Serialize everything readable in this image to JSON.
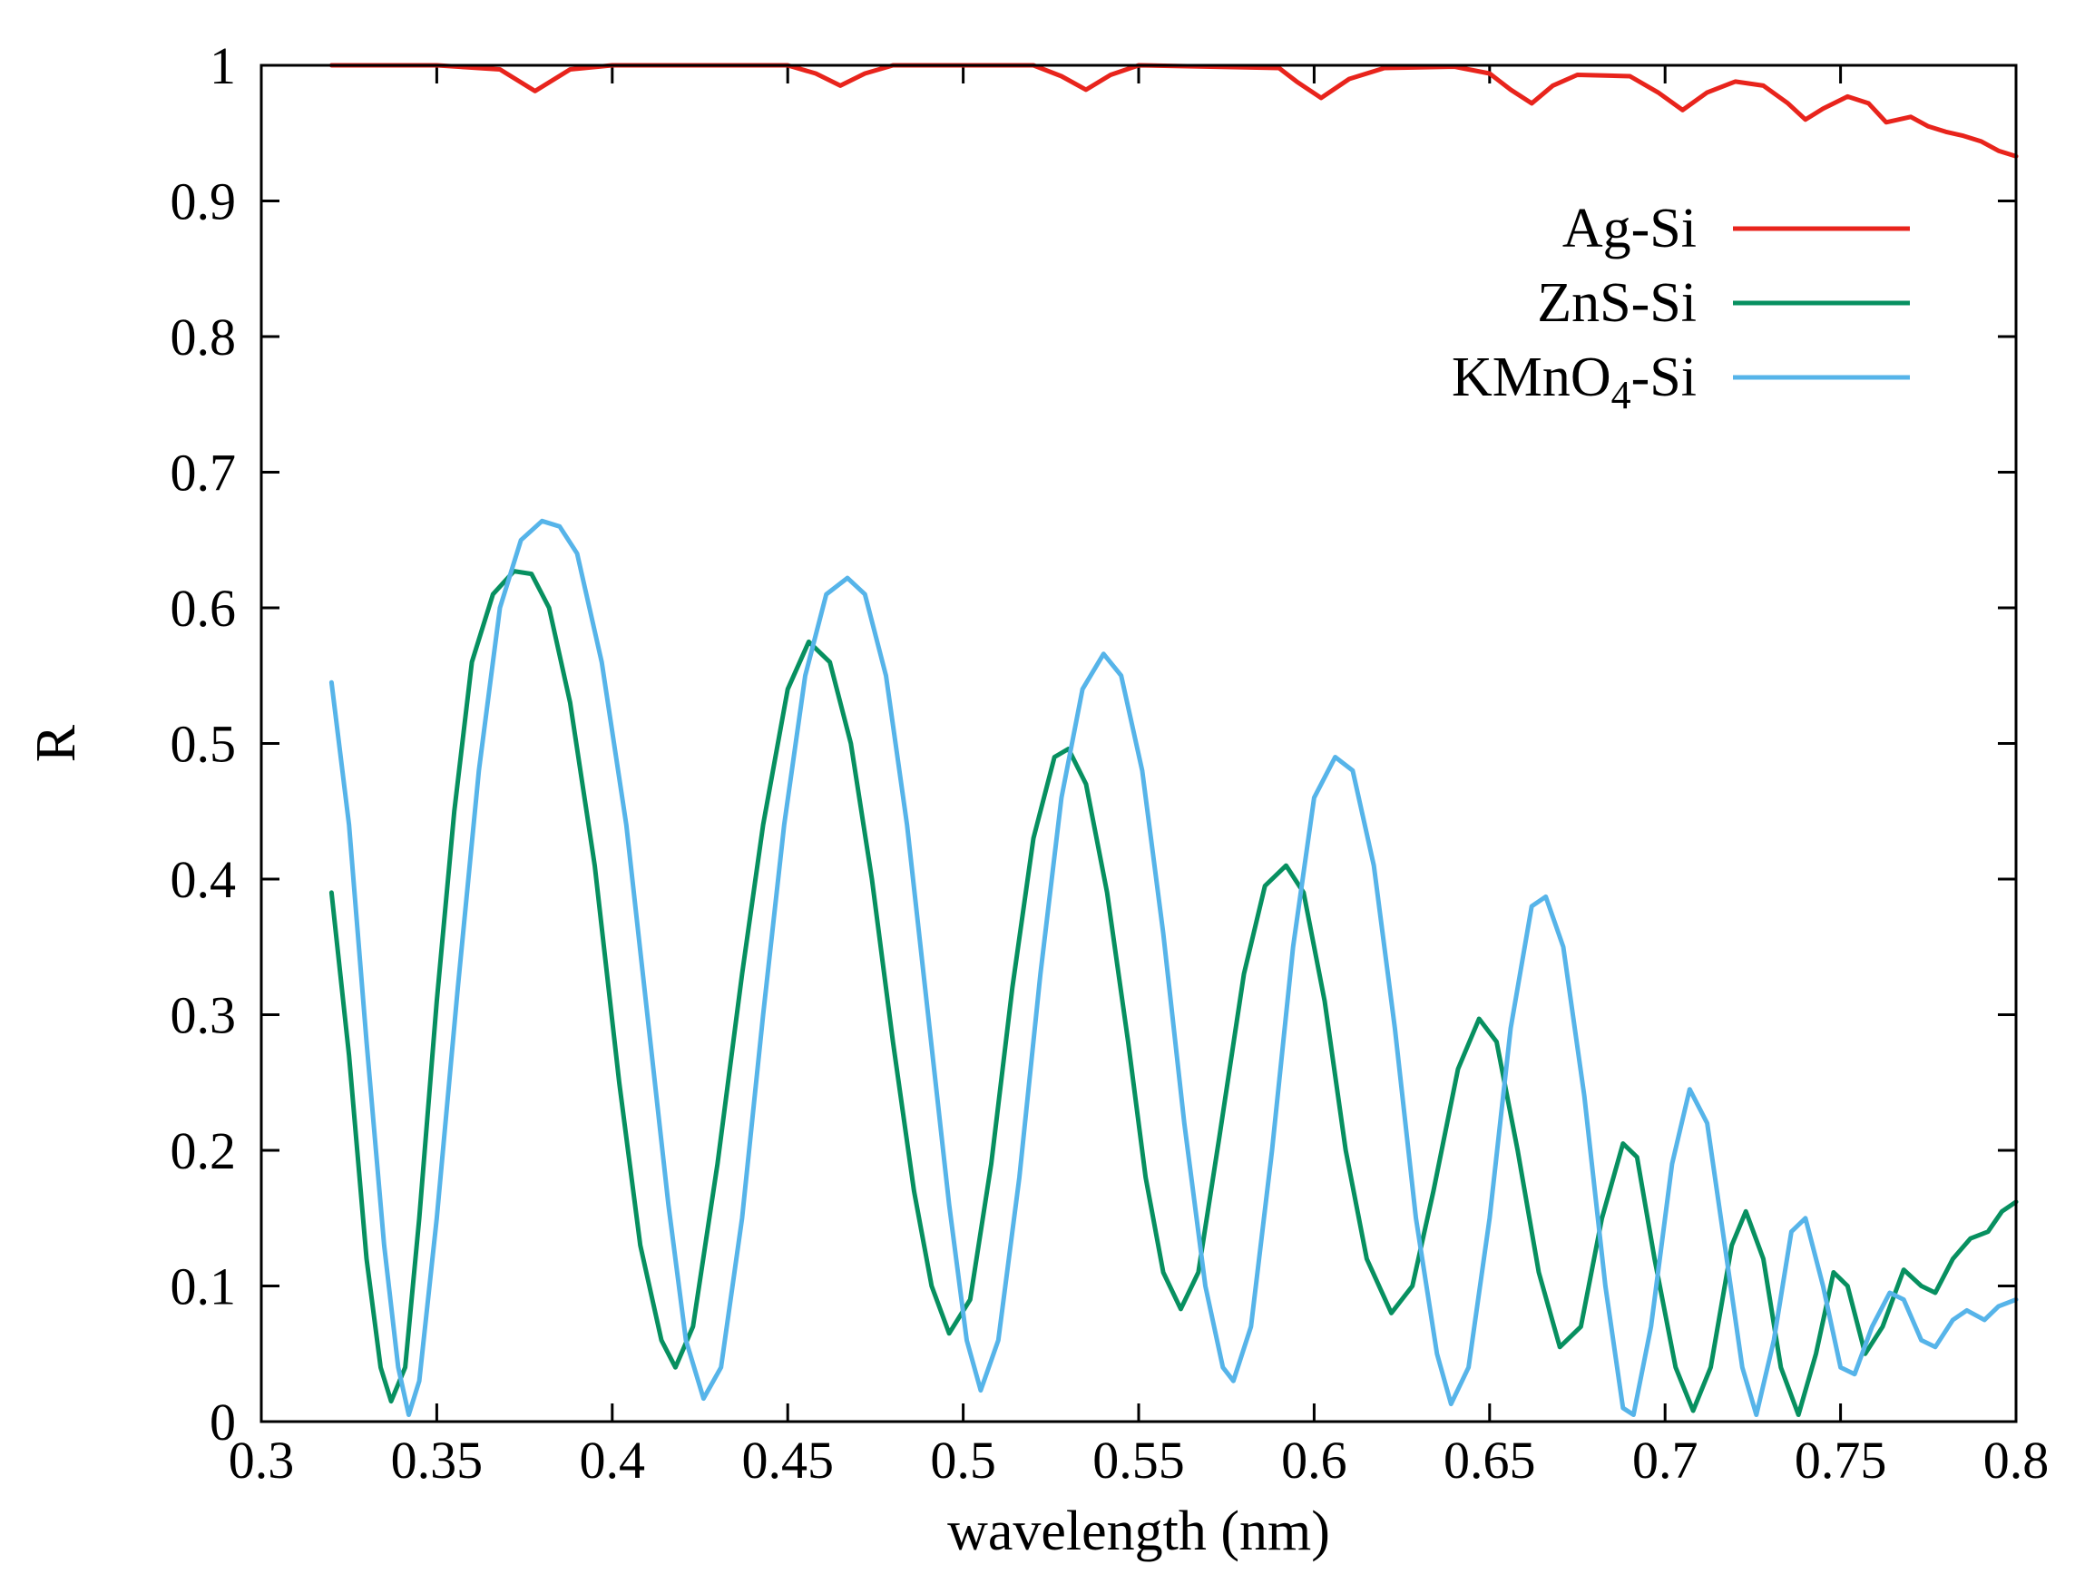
{
  "chart_data": {
    "type": "line",
    "xlabel": "wavelength (nm)",
    "ylabel": "R",
    "xlim": [
      0.3,
      0.8
    ],
    "ylim": [
      0,
      1
    ],
    "x_ticks": [
      "0.3",
      "0.35",
      "0.4",
      "0.45",
      "0.5",
      "0.55",
      "0.6",
      "0.65",
      "0.7",
      "0.75",
      "0.8"
    ],
    "y_ticks": [
      "0",
      "0.1",
      "0.2",
      "0.3",
      "0.4",
      "0.5",
      "0.6",
      "0.7",
      "0.8",
      "0.9",
      "1"
    ],
    "grid": false,
    "legend_position": "top-right",
    "series": [
      {
        "name": "Ag-Si",
        "legend_base": "Ag-Si",
        "legend_sub": "",
        "legend_tail": "",
        "color": "#e8241c",
        "points": [
          [
            0.32,
            1.0
          ],
          [
            0.35,
            1.0
          ],
          [
            0.368,
            0.997
          ],
          [
            0.378,
            0.981
          ],
          [
            0.388,
            0.997
          ],
          [
            0.4,
            1.0
          ],
          [
            0.45,
            1.0
          ],
          [
            0.458,
            0.994
          ],
          [
            0.465,
            0.985
          ],
          [
            0.472,
            0.994
          ],
          [
            0.48,
            1.0
          ],
          [
            0.52,
            1.0
          ],
          [
            0.528,
            0.992
          ],
          [
            0.535,
            0.982
          ],
          [
            0.542,
            0.993
          ],
          [
            0.55,
            1.0
          ],
          [
            0.59,
            0.998
          ],
          [
            0.595,
            0.988
          ],
          [
            0.602,
            0.976
          ],
          [
            0.61,
            0.99
          ],
          [
            0.62,
            0.998
          ],
          [
            0.64,
            0.999
          ],
          [
            0.65,
            0.994
          ],
          [
            0.656,
            0.982
          ],
          [
            0.662,
            0.972
          ],
          [
            0.668,
            0.985
          ],
          [
            0.675,
            0.993
          ],
          [
            0.69,
            0.992
          ],
          [
            0.698,
            0.98
          ],
          [
            0.705,
            0.967
          ],
          [
            0.712,
            0.98
          ],
          [
            0.72,
            0.988
          ],
          [
            0.728,
            0.985
          ],
          [
            0.735,
            0.972
          ],
          [
            0.74,
            0.96
          ],
          [
            0.745,
            0.968
          ],
          [
            0.752,
            0.977
          ],
          [
            0.758,
            0.972
          ],
          [
            0.763,
            0.958
          ],
          [
            0.77,
            0.962
          ],
          [
            0.775,
            0.955
          ],
          [
            0.78,
            0.951
          ],
          [
            0.785,
            0.948
          ],
          [
            0.79,
            0.944
          ],
          [
            0.795,
            0.937
          ],
          [
            0.8,
            0.933
          ]
        ]
      },
      {
        "name": "ZnS-Si",
        "legend_base": "ZnS-Si",
        "legend_sub": "",
        "legend_tail": "",
        "color": "#079060",
        "points": [
          [
            0.32,
            0.39
          ],
          [
            0.325,
            0.27
          ],
          [
            0.33,
            0.12
          ],
          [
            0.334,
            0.04
          ],
          [
            0.337,
            0.015
          ],
          [
            0.341,
            0.04
          ],
          [
            0.345,
            0.15
          ],
          [
            0.35,
            0.31
          ],
          [
            0.355,
            0.45
          ],
          [
            0.36,
            0.56
          ],
          [
            0.366,
            0.61
          ],
          [
            0.372,
            0.627
          ],
          [
            0.377,
            0.625
          ],
          [
            0.382,
            0.6
          ],
          [
            0.388,
            0.53
          ],
          [
            0.395,
            0.41
          ],
          [
            0.402,
            0.25
          ],
          [
            0.408,
            0.13
          ],
          [
            0.414,
            0.06
          ],
          [
            0.418,
            0.04
          ],
          [
            0.423,
            0.07
          ],
          [
            0.43,
            0.19
          ],
          [
            0.437,
            0.33
          ],
          [
            0.443,
            0.44
          ],
          [
            0.45,
            0.54
          ],
          [
            0.456,
            0.575
          ],
          [
            0.462,
            0.56
          ],
          [
            0.468,
            0.5
          ],
          [
            0.474,
            0.4
          ],
          [
            0.48,
            0.28
          ],
          [
            0.486,
            0.17
          ],
          [
            0.491,
            0.1
          ],
          [
            0.496,
            0.065
          ],
          [
            0.502,
            0.09
          ],
          [
            0.508,
            0.19
          ],
          [
            0.514,
            0.32
          ],
          [
            0.52,
            0.43
          ],
          [
            0.526,
            0.49
          ],
          [
            0.53,
            0.496
          ],
          [
            0.535,
            0.47
          ],
          [
            0.541,
            0.39
          ],
          [
            0.547,
            0.28
          ],
          [
            0.552,
            0.18
          ],
          [
            0.557,
            0.11
          ],
          [
            0.562,
            0.083
          ],
          [
            0.567,
            0.11
          ],
          [
            0.573,
            0.21
          ],
          [
            0.58,
            0.33
          ],
          [
            0.586,
            0.395
          ],
          [
            0.592,
            0.41
          ],
          [
            0.597,
            0.39
          ],
          [
            0.603,
            0.31
          ],
          [
            0.609,
            0.2
          ],
          [
            0.615,
            0.12
          ],
          [
            0.622,
            0.08
          ],
          [
            0.628,
            0.1
          ],
          [
            0.634,
            0.17
          ],
          [
            0.641,
            0.26
          ],
          [
            0.647,
            0.297
          ],
          [
            0.652,
            0.28
          ],
          [
            0.658,
            0.2
          ],
          [
            0.664,
            0.11
          ],
          [
            0.67,
            0.055
          ],
          [
            0.676,
            0.07
          ],
          [
            0.682,
            0.15
          ],
          [
            0.688,
            0.205
          ],
          [
            0.692,
            0.195
          ],
          [
            0.697,
            0.12
          ],
          [
            0.703,
            0.04
          ],
          [
            0.708,
            0.008
          ],
          [
            0.713,
            0.04
          ],
          [
            0.719,
            0.13
          ],
          [
            0.723,
            0.155
          ],
          [
            0.728,
            0.12
          ],
          [
            0.733,
            0.04
          ],
          [
            0.738,
            0.005
          ],
          [
            0.743,
            0.05
          ],
          [
            0.748,
            0.11
          ],
          [
            0.752,
            0.1
          ],
          [
            0.757,
            0.05
          ],
          [
            0.762,
            0.07
          ],
          [
            0.768,
            0.112
          ],
          [
            0.773,
            0.1
          ],
          [
            0.777,
            0.095
          ],
          [
            0.782,
            0.12
          ],
          [
            0.787,
            0.135
          ],
          [
            0.792,
            0.14
          ],
          [
            0.796,
            0.155
          ],
          [
            0.8,
            0.162
          ]
        ]
      },
      {
        "name": "KMnO4-Si",
        "legend_base": "KMnO",
        "legend_sub": "4",
        "legend_tail": "-Si",
        "color": "#56b4e9",
        "points": [
          [
            0.32,
            0.545
          ],
          [
            0.325,
            0.44
          ],
          [
            0.33,
            0.28
          ],
          [
            0.335,
            0.13
          ],
          [
            0.339,
            0.04
          ],
          [
            0.342,
            0.005
          ],
          [
            0.345,
            0.03
          ],
          [
            0.35,
            0.15
          ],
          [
            0.356,
            0.32
          ],
          [
            0.362,
            0.48
          ],
          [
            0.368,
            0.6
          ],
          [
            0.374,
            0.65
          ],
          [
            0.38,
            0.664
          ],
          [
            0.385,
            0.66
          ],
          [
            0.39,
            0.64
          ],
          [
            0.397,
            0.56
          ],
          [
            0.404,
            0.44
          ],
          [
            0.41,
            0.3
          ],
          [
            0.416,
            0.16
          ],
          [
            0.421,
            0.06
          ],
          [
            0.426,
            0.017
          ],
          [
            0.431,
            0.04
          ],
          [
            0.437,
            0.15
          ],
          [
            0.443,
            0.3
          ],
          [
            0.449,
            0.44
          ],
          [
            0.455,
            0.55
          ],
          [
            0.461,
            0.61
          ],
          [
            0.467,
            0.622
          ],
          [
            0.472,
            0.61
          ],
          [
            0.478,
            0.55
          ],
          [
            0.484,
            0.44
          ],
          [
            0.49,
            0.3
          ],
          [
            0.496,
            0.16
          ],
          [
            0.501,
            0.06
          ],
          [
            0.505,
            0.023
          ],
          [
            0.51,
            0.06
          ],
          [
            0.516,
            0.18
          ],
          [
            0.522,
            0.33
          ],
          [
            0.528,
            0.46
          ],
          [
            0.534,
            0.54
          ],
          [
            0.54,
            0.566
          ],
          [
            0.545,
            0.55
          ],
          [
            0.551,
            0.48
          ],
          [
            0.557,
            0.36
          ],
          [
            0.563,
            0.22
          ],
          [
            0.569,
            0.1
          ],
          [
            0.574,
            0.04
          ],
          [
            0.577,
            0.03
          ],
          [
            0.582,
            0.07
          ],
          [
            0.588,
            0.2
          ],
          [
            0.594,
            0.35
          ],
          [
            0.6,
            0.46
          ],
          [
            0.606,
            0.49
          ],
          [
            0.611,
            0.48
          ],
          [
            0.617,
            0.41
          ],
          [
            0.623,
            0.29
          ],
          [
            0.629,
            0.15
          ],
          [
            0.635,
            0.05
          ],
          [
            0.639,
            0.013
          ],
          [
            0.644,
            0.04
          ],
          [
            0.65,
            0.15
          ],
          [
            0.656,
            0.29
          ],
          [
            0.662,
            0.38
          ],
          [
            0.666,
            0.387
          ],
          [
            0.671,
            0.35
          ],
          [
            0.677,
            0.24
          ],
          [
            0.683,
            0.1
          ],
          [
            0.688,
            0.01
          ],
          [
            0.691,
            0.005
          ],
          [
            0.696,
            0.07
          ],
          [
            0.702,
            0.19
          ],
          [
            0.707,
            0.245
          ],
          [
            0.712,
            0.22
          ],
          [
            0.717,
            0.13
          ],
          [
            0.722,
            0.04
          ],
          [
            0.726,
            0.005
          ],
          [
            0.731,
            0.06
          ],
          [
            0.736,
            0.14
          ],
          [
            0.74,
            0.15
          ],
          [
            0.745,
            0.1
          ],
          [
            0.75,
            0.04
          ],
          [
            0.754,
            0.035
          ],
          [
            0.759,
            0.07
          ],
          [
            0.764,
            0.095
          ],
          [
            0.768,
            0.09
          ],
          [
            0.773,
            0.06
          ],
          [
            0.777,
            0.055
          ],
          [
            0.782,
            0.075
          ],
          [
            0.786,
            0.082
          ],
          [
            0.791,
            0.075
          ],
          [
            0.795,
            0.085
          ],
          [
            0.8,
            0.09
          ]
        ]
      }
    ]
  }
}
